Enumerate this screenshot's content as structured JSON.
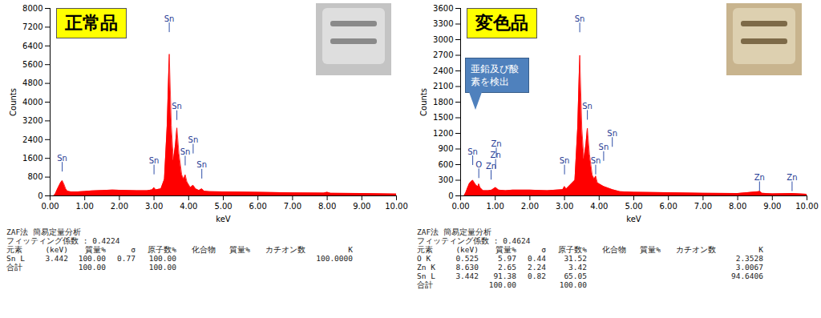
{
  "chart_data": [
    {
      "type": "area",
      "title": "正常品",
      "x_label": "keV",
      "y_label": "Counts",
      "color": "red",
      "xlim": [
        0,
        10
      ],
      "ylim": [
        0,
        8000
      ],
      "xticks": [
        {
          "value": 0,
          "label": "0.00"
        },
        {
          "value": 1,
          "label": "1.00"
        },
        {
          "value": 2,
          "label": "2.00"
        },
        {
          "value": 3,
          "label": "3.00"
        },
        {
          "value": 4,
          "label": "4.00"
        },
        {
          "value": 5,
          "label": "5.00"
        },
        {
          "value": 6,
          "label": "6.00"
        },
        {
          "value": 7,
          "label": "7.00"
        },
        {
          "value": 8,
          "label": "8.00"
        },
        {
          "value": 9,
          "label": "9.00"
        },
        {
          "value": 10,
          "label": "10.00"
        }
      ],
      "yticks": [
        0,
        800,
        1600,
        2400,
        3200,
        4000,
        4800,
        5600,
        6400,
        7200,
        8000
      ],
      "x": [
        0.1,
        0.15,
        0.2,
        0.25,
        0.3,
        0.35,
        0.4,
        0.45,
        0.5,
        0.6,
        0.8,
        1.0,
        1.2,
        1.5,
        1.8,
        2.0,
        2.5,
        2.8,
        2.95,
        3.0,
        3.05,
        3.2,
        3.3,
        3.38,
        3.44,
        3.5,
        3.56,
        3.62,
        3.66,
        3.72,
        3.8,
        3.86,
        3.9,
        3.95,
        4.05,
        4.13,
        4.2,
        4.3,
        4.38,
        4.45,
        4.6,
        5.0,
        6.0,
        7.0,
        7.9,
        8.0,
        8.1,
        9.0,
        10.0
      ],
      "values": [
        0,
        80,
        250,
        400,
        550,
        650,
        500,
        300,
        200,
        170,
        170,
        190,
        210,
        230,
        250,
        240,
        220,
        220,
        260,
        350,
        260,
        300,
        700,
        3000,
        6050,
        3000,
        1500,
        2200,
        2900,
        1800,
        900,
        700,
        900,
        600,
        350,
        450,
        300,
        230,
        300,
        200,
        180,
        170,
        150,
        130,
        120,
        150,
        110,
        100,
        80
      ],
      "peaks": [
        {
          "label": "Sn",
          "x": 0.35,
          "y": 1500
        },
        {
          "label": "Sn",
          "x": 3.0,
          "y": 1380
        },
        {
          "label": "Sn",
          "x": 3.44,
          "y": 7450
        },
        {
          "label": "Sn",
          "x": 3.66,
          "y": 3700
        },
        {
          "label": "Sn",
          "x": 4.13,
          "y": 2270
        },
        {
          "label": "Sn",
          "x": 3.9,
          "y": 1760
        },
        {
          "label": "Sn",
          "x": 4.38,
          "y": 1200
        }
      ],
      "analysis": {
        "title": "ZAF法 簡易定量分析",
        "fitting": "フィッティング係数 : 0.4224",
        "header": [
          "元素",
          "(keV)",
          "質量%",
          "σ",
          "原子数%",
          "化合物",
          "質量%",
          "カチオン数",
          "K"
        ],
        "rows": [
          [
            "Sn L",
            "3.442",
            "100.00",
            "0.77",
            "100.00",
            null,
            null,
            null,
            "100.0000"
          ],
          [
            "合計",
            null,
            "100.00",
            null,
            "100.00",
            null,
            null,
            null,
            null
          ]
        ]
      }
    },
    {
      "type": "area",
      "title": "変色品",
      "x_label": "keV",
      "y_label": "Counts",
      "color": "red",
      "xlim": [
        0,
        10
      ],
      "ylim": [
        0,
        3600
      ],
      "xticks": [
        {
          "value": 0,
          "label": "0.00"
        },
        {
          "value": 1,
          "label": "1.00"
        },
        {
          "value": 2,
          "label": "2.00"
        },
        {
          "value": 3,
          "label": "3.00"
        },
        {
          "value": 4,
          "label": "4.00"
        },
        {
          "value": 5,
          "label": "5.00"
        },
        {
          "value": 6,
          "label": "6.00"
        },
        {
          "value": 7,
          "label": "7.00"
        },
        {
          "value": 8,
          "label": "8.00"
        },
        {
          "value": 9,
          "label": "9.00"
        },
        {
          "value": 10,
          "label": "10.00"
        }
      ],
      "yticks": [
        0,
        300,
        600,
        900,
        1200,
        1500,
        1800,
        2100,
        2400,
        2700,
        3000,
        3300,
        3600
      ],
      "x": [
        0.1,
        0.15,
        0.2,
        0.25,
        0.3,
        0.35,
        0.4,
        0.45,
        0.5,
        0.525,
        0.56,
        0.65,
        0.8,
        0.9,
        1.01,
        1.1,
        1.3,
        1.5,
        2.0,
        2.5,
        2.95,
        3.0,
        3.05,
        3.3,
        3.38,
        3.44,
        3.5,
        3.56,
        3.62,
        3.66,
        3.72,
        3.8,
        3.86,
        3.9,
        3.95,
        4.13,
        4.38,
        4.6,
        5.0,
        6.0,
        7.0,
        8.0,
        8.6,
        8.64,
        8.7,
        9.0,
        9.57,
        10.0
      ],
      "values": [
        0,
        60,
        150,
        230,
        270,
        300,
        250,
        200,
        180,
        230,
        160,
        100,
        100,
        110,
        160,
        110,
        100,
        110,
        110,
        100,
        120,
        180,
        130,
        300,
        1300,
        2700,
        1300,
        700,
        1000,
        1300,
        800,
        400,
        320,
        380,
        250,
        180,
        120,
        80,
        70,
        60,
        50,
        45,
        80,
        90,
        50,
        40,
        45,
        30
      ],
      "peaks": [
        {
          "label": "Sn",
          "x": 0.35,
          "y": 800
        },
        {
          "label": "O",
          "x": 0.525,
          "y": 550
        },
        {
          "label": "Zn",
          "x": 0.88,
          "y": 520
        },
        {
          "label": "Zn",
          "x": 1.01,
          "y": 730
        },
        {
          "label": "Zn",
          "x": 1.03,
          "y": 950
        },
        {
          "label": "Sn",
          "x": 3.0,
          "y": 620
        },
        {
          "label": "Sn",
          "x": 3.44,
          "y": 3350
        },
        {
          "label": "Sn",
          "x": 3.66,
          "y": 1670
        },
        {
          "label": "Sn",
          "x": 3.9,
          "y": 620
        },
        {
          "label": "Sn",
          "x": 4.13,
          "y": 880
        },
        {
          "label": "Sn",
          "x": 4.38,
          "y": 1150
        },
        {
          "label": "Zn",
          "x": 8.63,
          "y": 300
        },
        {
          "label": "Zn",
          "x": 9.57,
          "y": 300
        }
      ],
      "annotations": [
        "亜鉛及び酸素を検出"
      ],
      "analysis": {
        "title": "ZAF法 簡易定量分析",
        "fitting": "フィッティング係数 : 0.4624",
        "header": [
          "元素",
          "(keV)",
          "質量%",
          "σ",
          "原子数%",
          "化合物",
          "質量%",
          "カチオン数",
          "K"
        ],
        "rows": [
          [
            "O K",
            "0.525",
            "5.97",
            "0.44",
            "31.52",
            null,
            null,
            null,
            "2.3528"
          ],
          [
            "Zn K",
            "8.630",
            "2.65",
            "2.24",
            "3.42",
            null,
            null,
            null,
            "3.0067"
          ],
          [
            "Sn L",
            "3.442",
            "91.38",
            "0.82",
            "65.05",
            null,
            null,
            null,
            "94.6406"
          ],
          [
            "合計",
            null,
            "100.00",
            null,
            "100.00",
            null,
            null,
            null,
            null
          ]
        ]
      }
    }
  ]
}
